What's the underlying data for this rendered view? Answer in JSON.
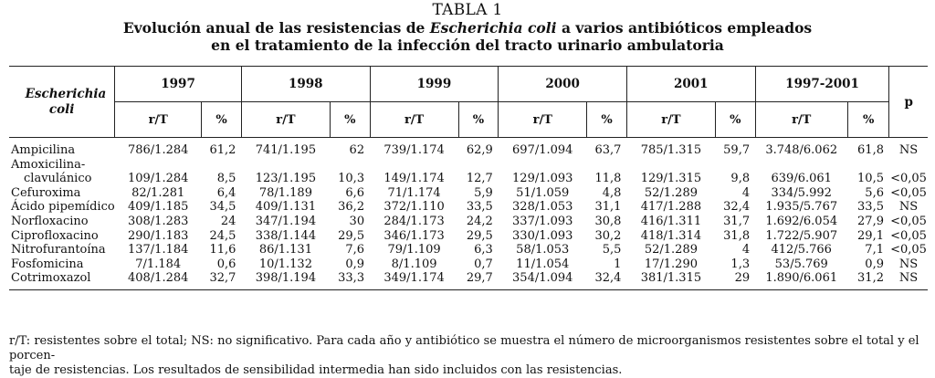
{
  "caption": {
    "tabla": "TABLA 1",
    "title_line1_a": "Evolución anual de las resistencias de ",
    "title_line1_italic": "Escherichia coli",
    "title_line1_b": " a varios antibióticos empleados",
    "title_line2": "en el tratamiento de la infección del tracto urinario ambulatoria"
  },
  "header": {
    "organism": "Escherichia coli",
    "years": [
      "1997",
      "1998",
      "1999",
      "2000",
      "2001",
      "1997-2001"
    ],
    "rt": "r/T",
    "pct": "%",
    "p": "p"
  },
  "rows": [
    {
      "drug": "Ampicilina",
      "cells": [
        "786/1.284",
        "61,2",
        "741/1.195",
        "62",
        "739/1.174",
        "62,9",
        "697/1.094",
        "63,7",
        "785/1.315",
        "59,7",
        "3.748/6.062",
        "61,8"
      ],
      "p": "NS"
    },
    {
      "drug": "Amoxicilina-",
      "drug2": "clavulánico",
      "cells": [
        "109/1.284",
        "8,5",
        "123/1.195",
        "10,3",
        "149/1.174",
        "12,7",
        "129/1.093",
        "11,8",
        "129/1.315",
        "9,8",
        "639/6.061",
        "10,5"
      ],
      "p": "<0,05"
    },
    {
      "drug": "Cefuroxima",
      "cells": [
        "82/1.281",
        "6,4",
        "78/1.189",
        "6,6",
        "71/1.174",
        "5,9",
        "51/1.059",
        "4,8",
        "52/1.289",
        "4",
        "334/5.992",
        "5,6"
      ],
      "p": "<0,05"
    },
    {
      "drug": "Ácido pipemídico",
      "cells": [
        "409/1.185",
        "34,5",
        "409/1.131",
        "36,2",
        "372/1.110",
        "33,5",
        "328/1.053",
        "31,1",
        "417/1.288",
        "32,4",
        "1.935/5.767",
        "33,5"
      ],
      "p": "NS"
    },
    {
      "drug": "Norfloxacino",
      "cells": [
        "308/1.283",
        "24",
        "347/1.194",
        "30",
        "284/1.173",
        "24,2",
        "337/1.093",
        "30,8",
        "416/1.311",
        "31,7",
        "1.692/6.054",
        "27,9"
      ],
      "p": "<0,05"
    },
    {
      "drug": "Ciprofloxacino",
      "cells": [
        "290/1.183",
        "24,5",
        "338/1.144",
        "29,5",
        "346/1.173",
        "29,5",
        "330/1.093",
        "30,2",
        "418/1.314",
        "31,8",
        "1.722/5.907",
        "29,1"
      ],
      "p": "<0,05"
    },
    {
      "drug": "Nitrofurantoína",
      "cells": [
        "137/1.184",
        "11,6",
        "86/1.131",
        "7,6",
        "79/1.109",
        "6,3",
        "58/1.053",
        "5,5",
        "52/1.289",
        "4",
        "412/5.766",
        "7,1"
      ],
      "p": "<0,05"
    },
    {
      "drug": "Fosfomicina",
      "cells": [
        "7/1.184",
        "0,6",
        "10/1.132",
        "0,9",
        "8/1.109",
        "0,7",
        "11/1.054",
        "1",
        "17/1.290",
        "1,3",
        "53/5.769",
        "0,9"
      ],
      "p": "NS"
    },
    {
      "drug": "Cotrimoxazol",
      "cells": [
        "408/1.284",
        "32,7",
        "398/1.194",
        "33,3",
        "349/1.174",
        "29,7",
        "354/1.094",
        "32,4",
        "381/1.315",
        "29",
        "1.890/6.061",
        "31,2"
      ],
      "p": "NS"
    }
  ],
  "footnote": {
    "line1": "r/T: resistentes sobre el total; NS: no significativo. Para cada año y antibiótico se muestra el número de microorganismos resistentes sobre el total y el porcen-",
    "line2": "taje de resistencias. Los resultados de sensibilidad intermedia han sido incluidos con las resistencias."
  }
}
